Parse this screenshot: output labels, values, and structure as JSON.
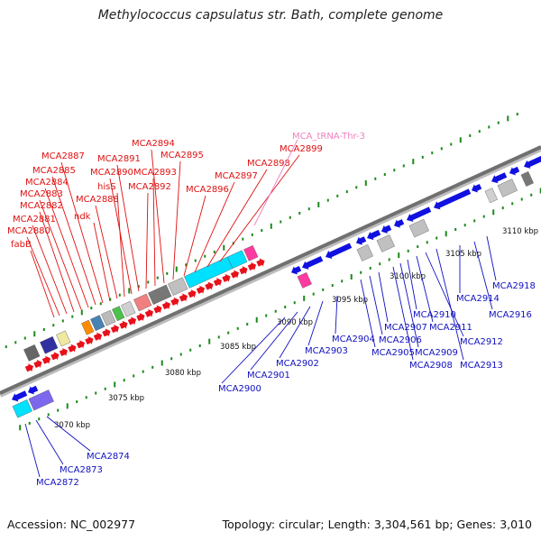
{
  "title": "Methylococcus capsulatus str. Bath, complete genome",
  "footer": {
    "accession": "Accession: NC_002977",
    "summary": "Topology: circular; Length: 3,304,561 bp; Genes: 3,010"
  },
  "colors": {
    "forward_gene": "#e8101a",
    "reverse_gene": "#1010e0",
    "trna": "#f060b0",
    "forward_label": "#e01010",
    "reverse_label": "#1010c0",
    "trna_label": "#f080c0",
    "backbone": "#707070",
    "ticks": "#1a8a1a"
  },
  "axis_ticks": [
    "3070 kbp",
    "3075 kbp",
    "3080 kbp",
    "3085 kbp",
    "3090 kbp",
    "3095 kbp",
    "3100 kbp",
    "3105 kbp",
    "3110 kbp"
  ],
  "forward_labels": [
    "fabB",
    "MCA2880",
    "MCA2881",
    "MCA2882",
    "MCA2883",
    "MCA2884",
    "MCA2885",
    "MCA2887",
    "ndk",
    "MCA2888",
    "hisS",
    "MCA2890",
    "MCA2891",
    "MCA2892",
    "MCA2893",
    "MCA2894",
    "MCA2895",
    "MCA2896",
    "MCA2897",
    "MCA2898",
    "MCA2899"
  ],
  "trna_label": "MCA_tRNA-Thr-3",
  "reverse_labels": [
    "MCA2872",
    "MCA2873",
    "MCA2874",
    "MCA2900",
    "MCA2901",
    "MCA2902",
    "MCA2903",
    "MCA2904",
    "MCA2905",
    "MCA2906",
    "MCA2907",
    "MCA2908",
    "MCA2909",
    "MCA2910",
    "MCA2911",
    "MCA2912",
    "MCA2913",
    "MCA2914",
    "MCA2916",
    "MCA2918"
  ],
  "legend_icons": [
    "forward-gene-arrow",
    "reverse-gene-arrow",
    "trna-block",
    "cog-category-box"
  ]
}
